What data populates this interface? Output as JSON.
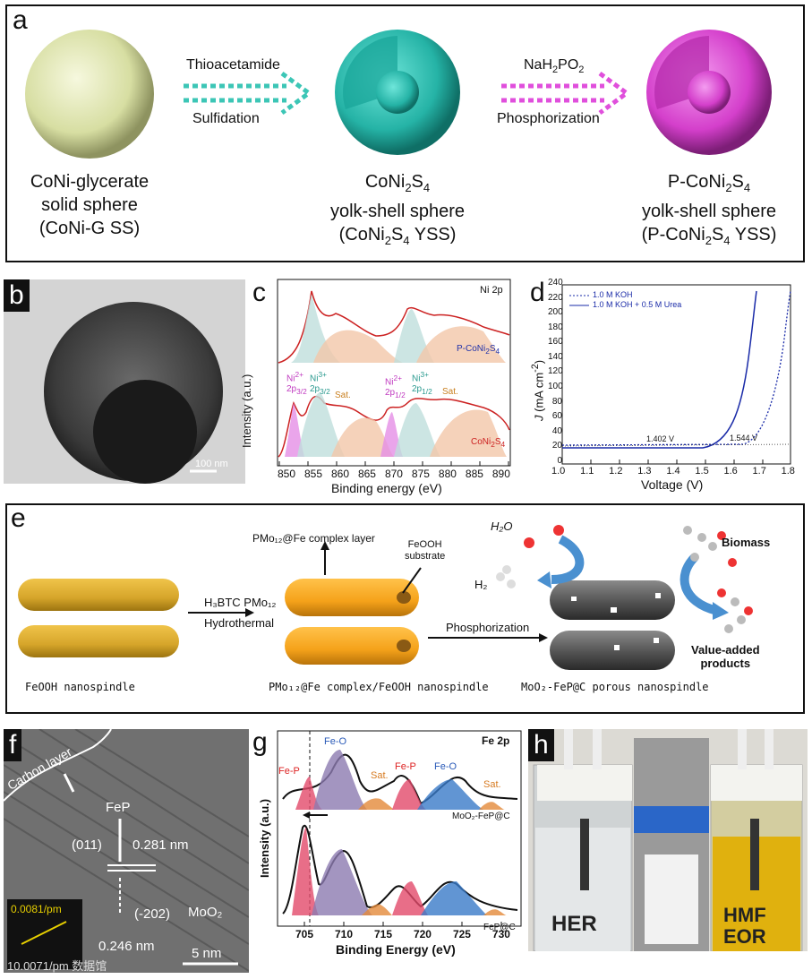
{
  "panel_a": {
    "label": "a",
    "reagent1_top": "Thioacetamide",
    "reagent1_bottom": "Sulfidation",
    "reagent2_bottom": "Phosphorization",
    "caption1": [
      "CoNi-glycerate",
      "solid sphere",
      "(CoNi-G SS)"
    ],
    "caption2_line2": "yolk-shell sphere",
    "caption3_line2": "yolk-shell sphere",
    "colors": {
      "solid_sphere": "#dfe6b0",
      "yss": "#2dbfb2",
      "pyss": "#d944d0",
      "arrow1": "#3cc6b6",
      "arrow2": "#e04fdc"
    }
  },
  "panel_b": {
    "label": "b",
    "scale": "100 nm"
  },
  "panel_c": {
    "label": "c",
    "title": "Ni 2p",
    "ylabel": "Intensity (a.u.)",
    "xlabel": "Binding energy (eV)",
    "ticks": [
      "850",
      "855",
      "860",
      "865",
      "870",
      "875",
      "880",
      "885",
      "890"
    ],
    "sat": "Sat."
  },
  "panel_d": {
    "label": "d",
    "legend1": "1.0 M KOH",
    "legend2": "1.0 M KOH + 0.5 M Urea",
    "xlabel": "Voltage (V)",
    "v1": "1.402 V",
    "v2": "1.544 V",
    "xticks": [
      "1.0",
      "1.1",
      "1.2",
      "1.3",
      "1.4",
      "1.5",
      "1.6",
      "1.7",
      "1.8"
    ],
    "yticks": [
      "0",
      "20",
      "40",
      "60",
      "80",
      "100",
      "120",
      "140",
      "160",
      "180",
      "200",
      "220",
      "240"
    ]
  },
  "panel_e": {
    "label": "e",
    "complex_layer": "PMo₁₂@Fe complex layer",
    "substrate1": "FeOOH",
    "substrate2": "substrate",
    "reagent_top": "H₃BTC PMo₁₂",
    "reagent_bottom": "Hydrothermal",
    "reagent2": "Phosphorization",
    "cap1": "FeOOH nanospindle",
    "cap2": "PMo₁₂@Fe complex/FeOOH nanospindle",
    "cap3": "MoO₂-FeP@C porous nanospindle",
    "h2o": "H₂O",
    "h2": "H₂",
    "biomass": "Biomass",
    "value1": "Value-added",
    "value2": "products"
  },
  "panel_f": {
    "label": "f",
    "carbon": "Carbon layer",
    "fep": "FeP",
    "plane1": "(011)",
    "d1": "0.281 nm",
    "plane2": "(-202)",
    "d2": "0.246 nm",
    "moo2": "MoO₂",
    "fft": "0.0081/pm",
    "scale": "5 nm",
    "watermark": "10.0071/pm 数据馆"
  },
  "panel_g": {
    "label": "g",
    "title": "Fe 2p",
    "ylabel": "Intensity (a.u.)",
    "xlabel": "Binding Energy (eV)",
    "ticks": [
      "705",
      "710",
      "715",
      "720",
      "725",
      "730"
    ],
    "peaks": [
      "Fe-P",
      "Fe-O",
      "Sat.",
      "Fe-P",
      "Fe-O",
      "Sat."
    ],
    "s1": "MoO₂-FeP@C",
    "s2": "FeP@C"
  },
  "panel_h": {
    "label": "h",
    "left": "HER",
    "right1": "HMF",
    "right2": "EOR"
  }
}
